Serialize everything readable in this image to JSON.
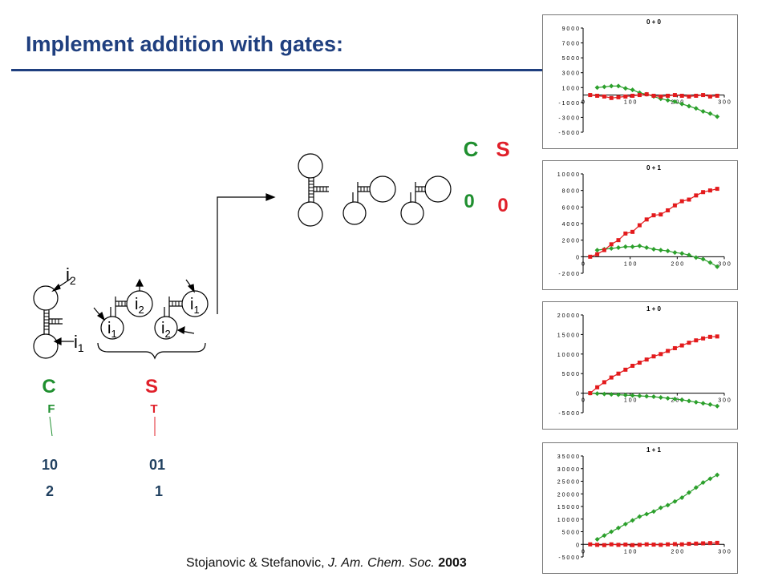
{
  "slide": {
    "title": "Implement addition with gates:",
    "citation": {
      "authors": "Stojanovic & Stefanovic, ",
      "journal": "J. Am. Chem. Soc.",
      "year": "2003"
    }
  },
  "gates": {
    "carry": {
      "label": "C",
      "gate_type": "F",
      "binary": "10",
      "decimal": "2",
      "color": "#1f8f2f"
    },
    "sum": {
      "label": "S",
      "gate_type": "T",
      "binary": "01",
      "decimal": "1",
      "color": "#e0202a"
    },
    "inputs": {
      "i1": "i",
      "i1_sub": "1",
      "i2": "i",
      "i2_sub": "2"
    }
  },
  "result": {
    "carry_label": "C",
    "sum_label": "S",
    "carry_value": "0",
    "sum_value": "0"
  },
  "chart_data": [
    {
      "type": "line",
      "title": "0 + 0",
      "ylim": [
        -5000,
        9000
      ],
      "yticks": [
        9000,
        7000,
        5000,
        3000,
        1000,
        -1000,
        -3000,
        -5000
      ],
      "ytick_labels": [
        "9 0 0 0",
        "7 0 0 0",
        "5 0 0 0",
        "3 0 0 0",
        "1 0 0 0",
        "- 1 0 0 0",
        "- 3 0 0 0",
        "- 5 0 0 0"
      ],
      "xlim": [
        0,
        300
      ],
      "xticks": [
        0,
        100,
        200,
        300
      ],
      "xtick_labels": [
        "0",
        "1 0 0",
        "2 0 0",
        "3 0 0"
      ],
      "series": [
        {
          "color": "#2ca02c",
          "marker": "diamond",
          "x": [
            30,
            45,
            60,
            75,
            90,
            105,
            120,
            135,
            150,
            165,
            180,
            195,
            210,
            225,
            240,
            255,
            270,
            285
          ],
          "y": [
            1000,
            1100,
            1200,
            1200,
            900,
            700,
            300,
            100,
            -200,
            -500,
            -700,
            -900,
            -1200,
            -1500,
            -1800,
            -2200,
            -2500,
            -2900
          ]
        },
        {
          "color": "#e31a1c",
          "marker": "square",
          "x": [
            15,
            30,
            45,
            60,
            75,
            90,
            105,
            120,
            135,
            150,
            165,
            180,
            195,
            210,
            225,
            240,
            255,
            270,
            285
          ],
          "y": [
            0,
            -100,
            -200,
            -400,
            -300,
            -200,
            -100,
            0,
            100,
            -100,
            -200,
            -100,
            0,
            -100,
            -200,
            -100,
            0,
            -200,
            -100
          ]
        }
      ]
    },
    {
      "type": "line",
      "title": "0 + 1",
      "ylim": [
        -2000,
        10000
      ],
      "yticks": [
        10000,
        8000,
        6000,
        4000,
        2000,
        0,
        -2000
      ],
      "ytick_labels": [
        "1 0 0 0 0",
        "8 0 0 0",
        "6 0 0 0",
        "4 0 0 0",
        "2 0 0 0",
        "0",
        "- 2 0 0 0"
      ],
      "xlim": [
        0,
        300
      ],
      "xticks": [
        0,
        100,
        200,
        300
      ],
      "xtick_labels": [
        "0",
        "1 0 0",
        "2 0 0",
        "3 0 0"
      ],
      "series": [
        {
          "color": "#2ca02c",
          "marker": "diamond",
          "x": [
            30,
            45,
            60,
            75,
            90,
            105,
            120,
            135,
            150,
            165,
            180,
            195,
            210,
            225,
            240,
            255,
            270,
            285
          ],
          "y": [
            800,
            900,
            1000,
            1100,
            1200,
            1200,
            1300,
            1100,
            900,
            800,
            700,
            500,
            400,
            200,
            -100,
            -300,
            -700,
            -1200
          ]
        },
        {
          "color": "#e31a1c",
          "marker": "square",
          "x": [
            15,
            30,
            45,
            60,
            75,
            90,
            105,
            120,
            135,
            150,
            165,
            180,
            195,
            210,
            225,
            240,
            255,
            270,
            285
          ],
          "y": [
            0,
            300,
            800,
            1500,
            2000,
            2800,
            3000,
            3800,
            4500,
            5000,
            5100,
            5600,
            6200,
            6700,
            6900,
            7400,
            7800,
            8000,
            8200
          ]
        }
      ]
    },
    {
      "type": "line",
      "title": "1 + 0",
      "ylim": [
        -5000,
        20000
      ],
      "yticks": [
        20000,
        15000,
        10000,
        5000,
        0,
        -5000
      ],
      "ytick_labels": [
        "2 0 0 0 0",
        "1 5 0 0 0",
        "1 0 0 0 0",
        "5 0 0 0",
        "0",
        "- 5 0 0 0"
      ],
      "xlim": [
        0,
        300
      ],
      "xticks": [
        0,
        100,
        200,
        300
      ],
      "xtick_labels": [
        "0",
        "1 0 0",
        "2 0 0",
        "3 0 0"
      ],
      "series": [
        {
          "color": "#2ca02c",
          "marker": "diamond",
          "x": [
            15,
            30,
            45,
            60,
            75,
            90,
            105,
            120,
            135,
            150,
            165,
            180,
            195,
            210,
            225,
            240,
            255,
            270,
            285
          ],
          "y": [
            0,
            -100,
            -200,
            -300,
            -400,
            -500,
            -600,
            -700,
            -800,
            -900,
            -1100,
            -1300,
            -1500,
            -1700,
            -2000,
            -2300,
            -2600,
            -2900,
            -3300
          ]
        },
        {
          "color": "#e31a1c",
          "marker": "square",
          "x": [
            15,
            30,
            45,
            60,
            75,
            90,
            105,
            120,
            135,
            150,
            165,
            180,
            195,
            210,
            225,
            240,
            255,
            270,
            285
          ],
          "y": [
            0,
            1500,
            2800,
            4000,
            5000,
            6000,
            7000,
            7800,
            8600,
            9400,
            10000,
            10800,
            11500,
            12200,
            12900,
            13500,
            14000,
            14400,
            14500
          ]
        }
      ]
    },
    {
      "type": "line",
      "title": "1 + 1",
      "ylim": [
        -5000,
        35000
      ],
      "yticks": [
        35000,
        30000,
        25000,
        20000,
        15000,
        10000,
        5000,
        0,
        -5000
      ],
      "ytick_labels": [
        "3 5 0 0 0",
        "3 0 0 0 0",
        "2 5 0 0 0",
        "2 0 0 0 0",
        "1 5 0 0 0",
        "1 0 0 0 0",
        "5 0 0 0",
        "0",
        "- 5 0 0 0"
      ],
      "xlim": [
        0,
        300
      ],
      "xticks": [
        0,
        100,
        200,
        300
      ],
      "xtick_labels": [
        "0",
        "1 0 0",
        "2 0 0",
        "3 0 0"
      ],
      "series": [
        {
          "color": "#2ca02c",
          "marker": "diamond",
          "x": [
            30,
            45,
            60,
            75,
            90,
            105,
            120,
            135,
            150,
            165,
            180,
            195,
            210,
            225,
            240,
            255,
            270,
            285
          ],
          "y": [
            2000,
            3500,
            5000,
            6500,
            8000,
            9500,
            11000,
            12000,
            13000,
            14500,
            15500,
            17000,
            18500,
            20500,
            22500,
            24500,
            26000,
            27500
          ]
        },
        {
          "color": "#e31a1c",
          "marker": "square",
          "x": [
            15,
            30,
            45,
            60,
            75,
            90,
            105,
            120,
            135,
            150,
            165,
            180,
            195,
            210,
            225,
            240,
            255,
            270,
            285
          ],
          "y": [
            0,
            -200,
            -300,
            0,
            -200,
            -100,
            -300,
            -200,
            0,
            -100,
            -200,
            0,
            100,
            0,
            200,
            300,
            400,
            500,
            600
          ]
        }
      ]
    }
  ]
}
